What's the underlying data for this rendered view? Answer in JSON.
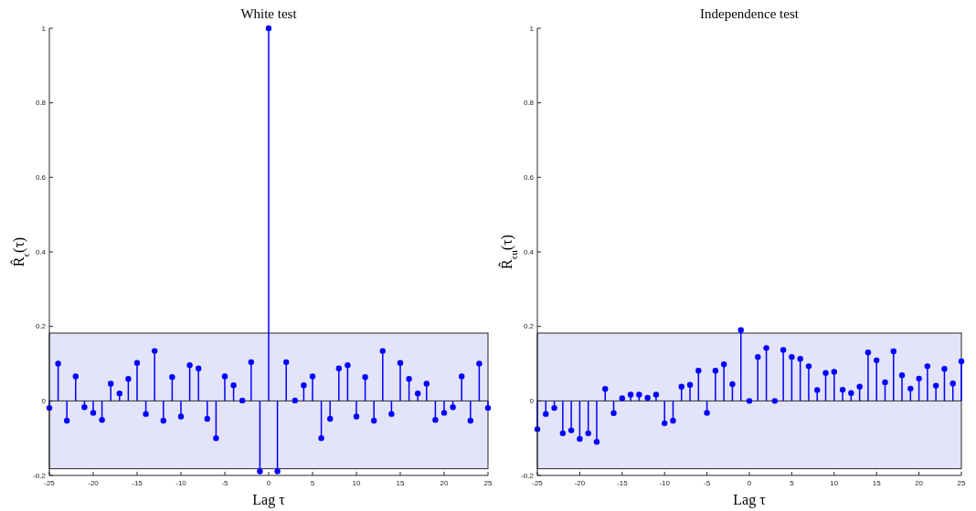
{
  "chart_data": [
    {
      "type": "lollipop",
      "title": "White test",
      "xlabel": "Lag τ",
      "ylabel": "R̂$_{ϵ}$(τ)",
      "marker": "circle",
      "x": [
        -25,
        -24,
        -23,
        -22,
        -21,
        -20,
        -19,
        -18,
        -17,
        -16,
        -15,
        -14,
        -13,
        -12,
        -11,
        -10,
        -9,
        -8,
        -7,
        -6,
        -5,
        -4,
        -3,
        -2,
        -1,
        0,
        1,
        2,
        3,
        4,
        5,
        6,
        7,
        8,
        9,
        10,
        11,
        12,
        13,
        14,
        15,
        16,
        17,
        18,
        19,
        20,
        21,
        22,
        23,
        24,
        25
      ],
      "series": [
        {
          "color": "#0000ff",
          "values": [
            -0.019,
            0.1,
            -0.053,
            0.066,
            -0.017,
            -0.032,
            -0.051,
            0.046,
            0.02,
            0.059,
            0.102,
            -0.035,
            0.134,
            -0.053,
            0.064,
            -0.042,
            0.096,
            0.087,
            -0.048,
            -0.1,
            0.066,
            0.042,
            0.001,
            0.104,
            -0.189,
            1,
            -0.189,
            0.104,
            0.001,
            0.042,
            0.066,
            -0.1,
            -0.048,
            0.087,
            0.096,
            -0.042,
            0.064,
            -0.053,
            0.134,
            -0.035,
            0.102,
            0.059,
            0.02,
            0.046,
            -0.051,
            -0.032,
            -0.017,
            0.066,
            -0.053,
            0.1,
            -0.019
          ]
        }
      ],
      "bands": [
        {
          "axis": "y",
          "from": -0.182,
          "to": 0.182,
          "color": "#e3e3fa"
        }
      ],
      "xlim": [
        -25,
        25
      ],
      "xticks": [
        -25,
        -20,
        -15,
        -10,
        -5,
        0,
        5,
        10,
        15,
        20,
        25
      ],
      "ylim": [
        -0.2,
        1
      ],
      "yticks": [
        -0.2,
        0,
        0.2,
        0.4,
        0.6,
        0.8,
        1
      ]
    },
    {
      "type": "lollipop",
      "title": "Independence test",
      "xlabel": "Lag τ",
      "ylabel": "R̂$_{ϵu}$(τ)",
      "marker": "circle",
      "x": [
        -25,
        -24,
        -23,
        -22,
        -21,
        -20,
        -19,
        -18,
        -17,
        -16,
        -15,
        -14,
        -13,
        -12,
        -11,
        -10,
        -9,
        -8,
        -7,
        -6,
        -5,
        -4,
        -3,
        -2,
        -1,
        0,
        1,
        2,
        3,
        4,
        5,
        6,
        7,
        8,
        9,
        10,
        11,
        12,
        13,
        14,
        15,
        16,
        17,
        18,
        19,
        20,
        21,
        22,
        23,
        24,
        25
      ],
      "series": [
        {
          "color": "#0000ff",
          "values": [
            -0.076,
            -0.035,
            -0.019,
            -0.087,
            -0.079,
            -0.102,
            -0.087,
            -0.11,
            0.032,
            -0.033,
            0.007,
            0.017,
            0.017,
            0.008,
            0.017,
            -0.06,
            -0.053,
            0.038,
            0.043,
            0.081,
            -0.032,
            0.081,
            0.098,
            0.045,
            0.19,
            0,
            0.118,
            0.142,
            0,
            0.137,
            0.118,
            0.113,
            0.093,
            0.029,
            0.075,
            0.078,
            0.03,
            0.021,
            0.038,
            0.13,
            0.109,
            0.05,
            0.133,
            0.069,
            0.033,
            0.06,
            0.093,
            0.041,
            0.086,
            0.047,
            0.106
          ]
        }
      ],
      "bands": [
        {
          "axis": "y",
          "from": -0.182,
          "to": 0.182,
          "color": "#e3e3fa"
        }
      ],
      "xlim": [
        -25,
        25
      ],
      "xticks": [
        -25,
        -20,
        -15,
        -10,
        -5,
        0,
        5,
        10,
        15,
        20,
        25
      ],
      "ylim": [
        -0.2,
        1
      ],
      "yticks": [
        -0.2,
        0,
        0.2,
        0.4,
        0.6,
        0.8,
        1
      ]
    }
  ]
}
